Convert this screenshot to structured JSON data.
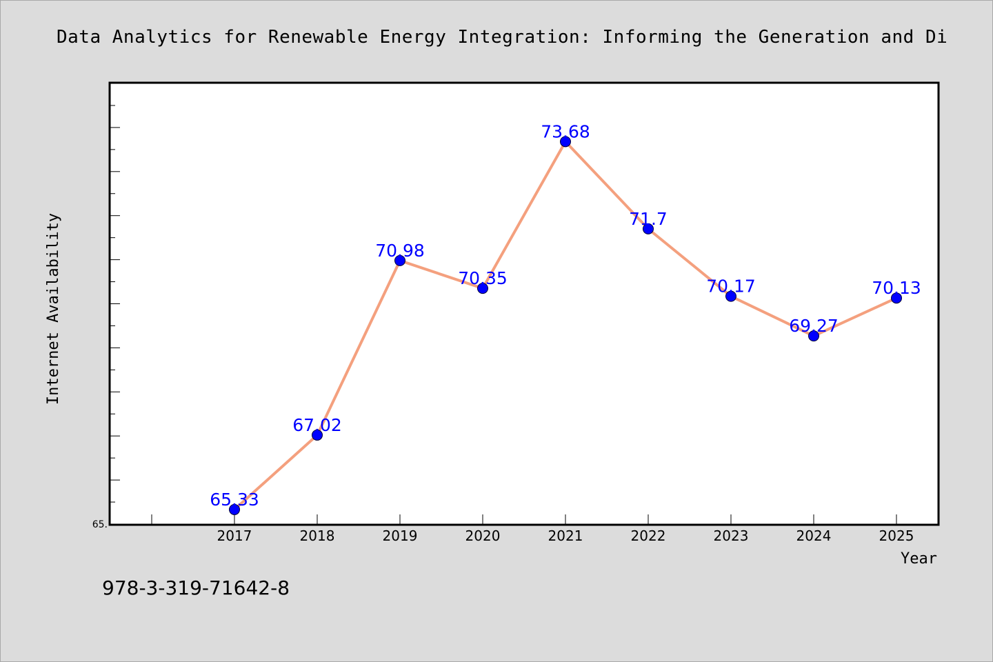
{
  "chart_data": {
    "type": "line",
    "title": "Data Analytics for Renewable Energy Integration: Informing the Generation and Di",
    "xlabel": "Year",
    "ylabel": "Internet Availability",
    "categories": [
      "2017",
      "2018",
      "2019",
      "2020",
      "2021",
      "2022",
      "2023",
      "2024",
      "2025"
    ],
    "series": [
      {
        "values": [
          65.33,
          67.02,
          70.98,
          70.35,
          73.68,
          71.7,
          70.17,
          69.27,
          70.13
        ],
        "data_labels": [
          "65.33",
          "67.02",
          "70.98",
          "70.35",
          "73.68",
          "71.7",
          "70.17",
          "69.27",
          "70.13"
        ]
      }
    ],
    "ylim": [
      65.0,
      75.0
    ],
    "y_tick_labels": [
      "65."
    ],
    "grid": false,
    "line_color": "#f4a07e",
    "marker_color": "#0000ff",
    "label_color": "#0000ff"
  },
  "footer": {
    "isbn": "978-3-319-71642-8"
  }
}
